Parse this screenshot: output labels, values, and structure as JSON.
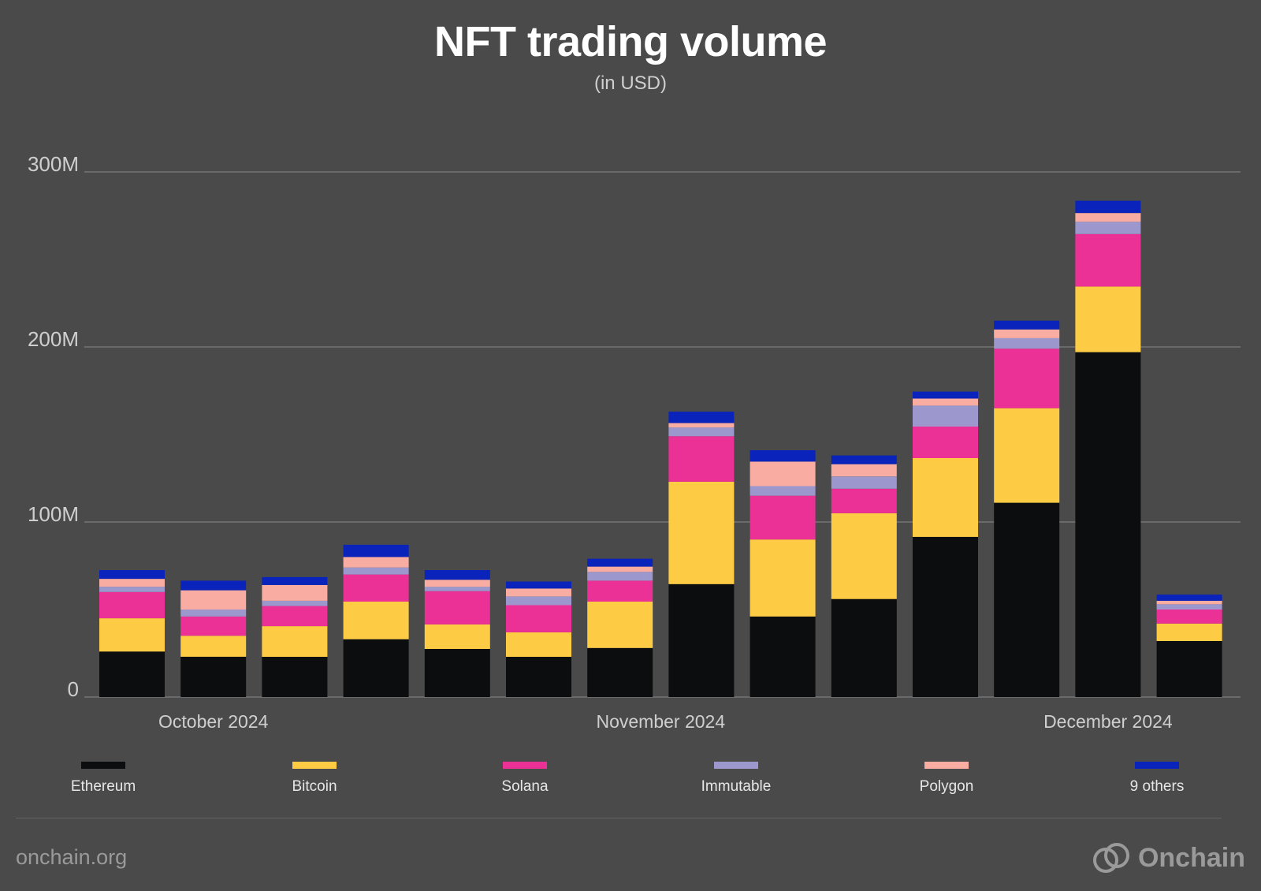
{
  "header": {
    "title": "NFT trading volume",
    "subtitle": "(in USD)"
  },
  "chart_data": {
    "type": "bar",
    "stacked": true,
    "title": "NFT trading volume",
    "subtitle": "(in USD)",
    "xlabel": "",
    "ylabel": "",
    "ylim": [
      0,
      300000000
    ],
    "y_ticks": [
      {
        "value": 0,
        "label": "0"
      },
      {
        "value": 100000000,
        "label": "100M"
      },
      {
        "value": 200000000,
        "label": "200M"
      },
      {
        "value": 300000000,
        "label": "300M"
      }
    ],
    "grid": true,
    "legend_position": "bottom",
    "x_labels": [
      {
        "label": "October 2024",
        "bar_index": 1
      },
      {
        "label": "November 2024",
        "bar_index": 6.5
      },
      {
        "label": "December 2024",
        "bar_index": 12
      }
    ],
    "bar_count": 14,
    "series": [
      {
        "name": "Ethereum",
        "color": "#0b0d0e",
        "values": [
          26000000,
          23000000,
          23000000,
          33000000,
          27500000,
          23000000,
          28000000,
          64500000,
          46000000,
          56000000,
          91500000,
          111000000,
          197000000,
          32000000
        ]
      },
      {
        "name": "Bitcoin",
        "color": "#fecb44",
        "values": [
          19000000,
          12000000,
          17500000,
          21500000,
          14000000,
          14000000,
          26500000,
          58500000,
          44000000,
          49000000,
          45000000,
          54000000,
          37500000,
          10000000
        ]
      },
      {
        "name": "Solana",
        "color": "#eb3096",
        "values": [
          15000000,
          11000000,
          11500000,
          15500000,
          19000000,
          15500000,
          12000000,
          26000000,
          25000000,
          14000000,
          18000000,
          34000000,
          30000000,
          8000000
        ]
      },
      {
        "name": "Immutable",
        "color": "#9c98cd",
        "values": [
          3000000,
          4000000,
          3000000,
          4000000,
          2500000,
          5000000,
          5000000,
          5000000,
          5500000,
          7000000,
          12000000,
          6000000,
          7000000,
          3000000
        ]
      },
      {
        "name": "Polygon",
        "color": "#f9ada2",
        "values": [
          4500000,
          11000000,
          9000000,
          6000000,
          4000000,
          4500000,
          3000000,
          2500000,
          14000000,
          7000000,
          4000000,
          5000000,
          5000000,
          2000000
        ]
      },
      {
        "name": "9 others",
        "color": "#0923bb",
        "values": [
          5000000,
          5500000,
          4500000,
          7000000,
          5500000,
          4000000,
          4500000,
          6500000,
          6500000,
          5000000,
          4000000,
          5000000,
          7000000,
          3500000
        ]
      }
    ]
  },
  "legend": [
    {
      "name": "Ethereum",
      "color": "#0b0d0e"
    },
    {
      "name": "Bitcoin",
      "color": "#fecb44"
    },
    {
      "name": "Solana",
      "color": "#eb3096"
    },
    {
      "name": "Immutable",
      "color": "#9c98cd"
    },
    {
      "name": "Polygon",
      "color": "#f9ada2"
    },
    {
      "name": "9 others",
      "color": "#0923bb"
    }
  ],
  "footer": {
    "source": "onchain.org",
    "brand": "Onchain",
    "brand_icon": "onchain-logo-icon"
  }
}
